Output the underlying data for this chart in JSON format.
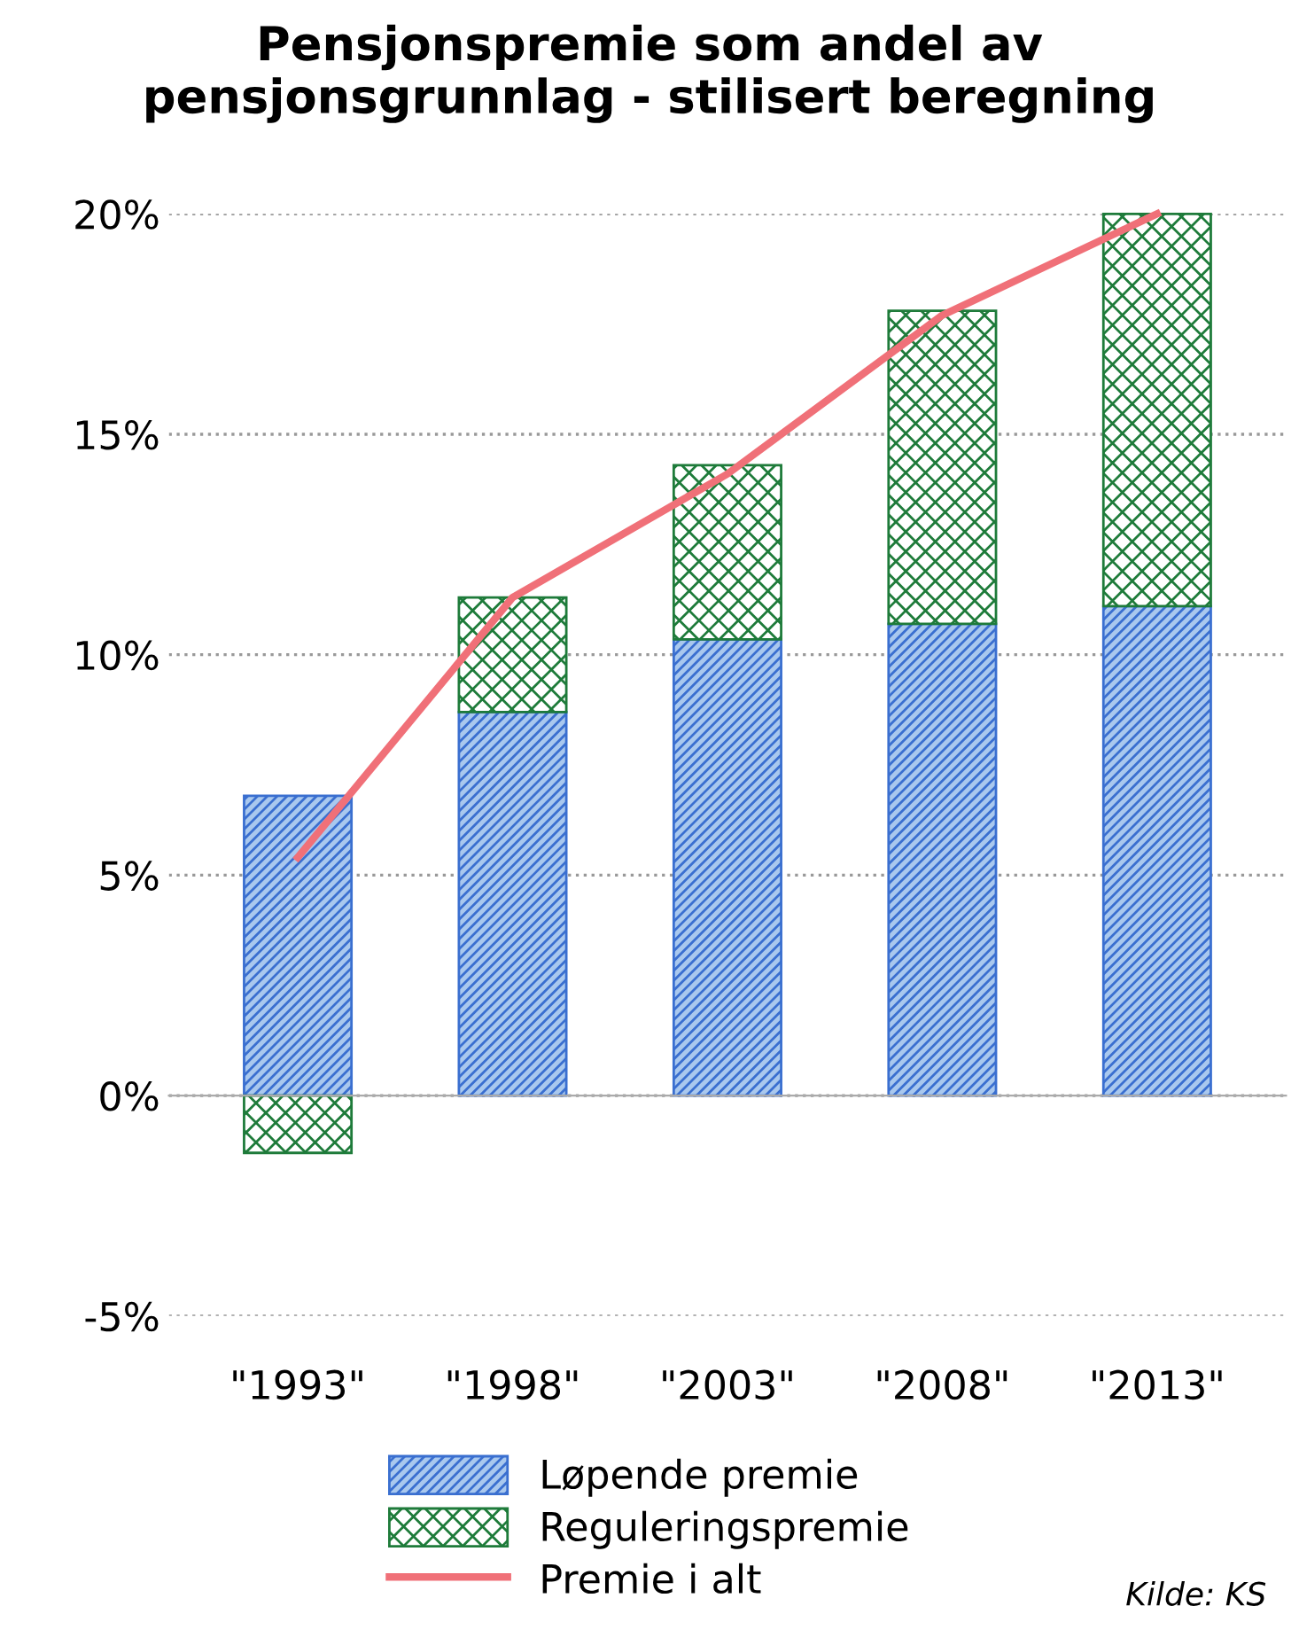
{
  "chart_data": {
    "type": "bar",
    "title": "Pensjonspremie som andel av\npensjonsgrunnlag - stilisert beregning",
    "categories": [
      "\"1993\"",
      "\"1998\"",
      "\"2003\"",
      "\"2008\"",
      "\"2013\""
    ],
    "stacked": true,
    "series": [
      {
        "name": "Løpende premie",
        "color": "#3a6fd0",
        "values": [
          6.8,
          8.7,
          10.35,
          10.7,
          11.1
        ]
      },
      {
        "name": "Reguleringspremie",
        "color": "#1e7b3a",
        "values": [
          -1.3,
          2.6,
          3.95,
          7.1,
          8.9
        ]
      },
      {
        "name": "Premie i alt",
        "type": "line",
        "color": "#f07078",
        "values": [
          5.4,
          11.3,
          14.1,
          17.7,
          20.0
        ]
      }
    ],
    "ylim": [
      -5,
      20
    ],
    "yticks": [
      {
        "value": -5,
        "label": "-5%"
      },
      {
        "value": 0,
        "label": "0%"
      },
      {
        "value": 5,
        "label": "5%"
      },
      {
        "value": 10,
        "label": "10%"
      },
      {
        "value": 15,
        "label": "15%"
      },
      {
        "value": 20,
        "label": "20%"
      }
    ],
    "grid": "y",
    "legend": "bottom",
    "marker": "none",
    "line_style": "solid",
    "annotations": [
      "Kilde: KS"
    ]
  }
}
